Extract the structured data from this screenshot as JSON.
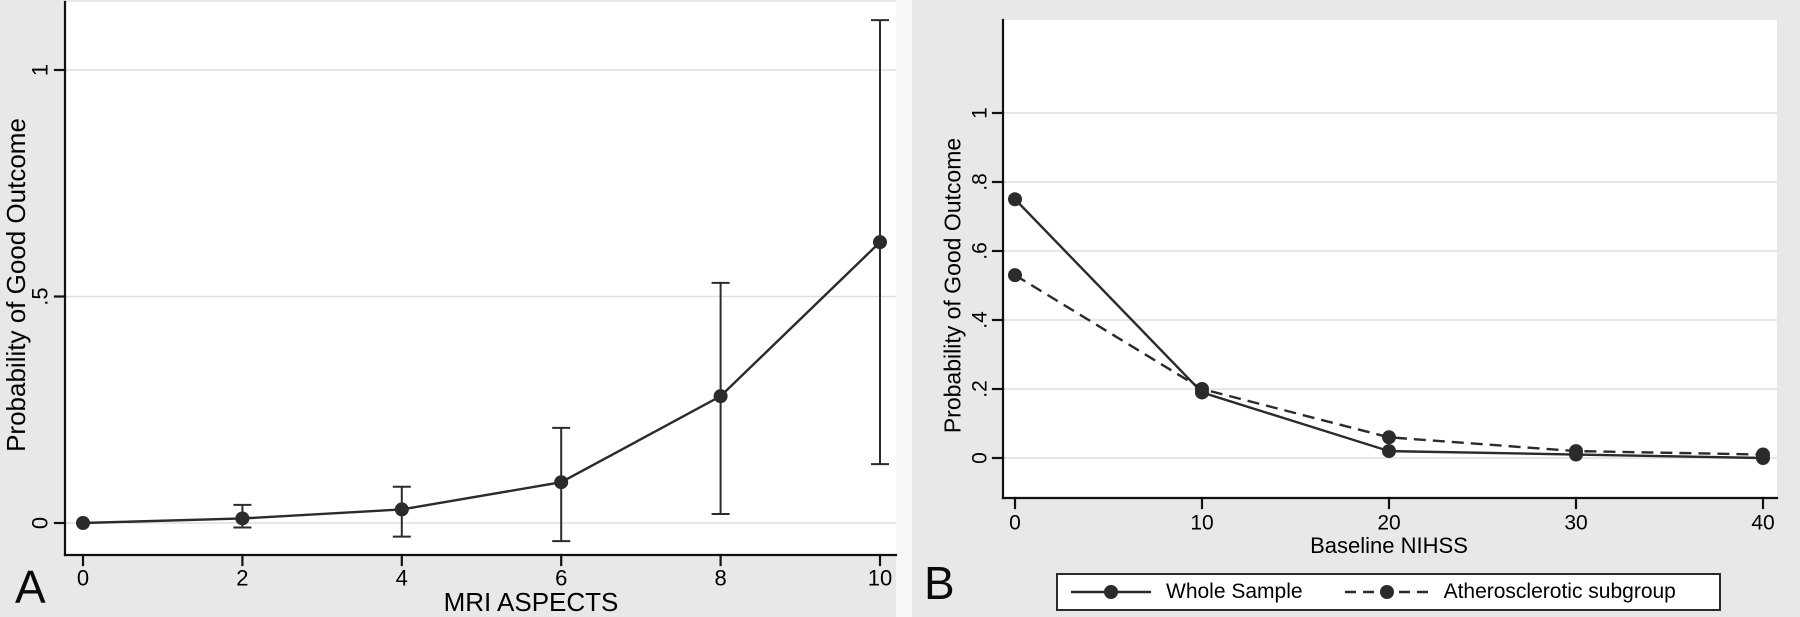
{
  "figure": {
    "background_color": "#e8e8e8",
    "plot_background_color": "#ffffff",
    "gridline_color": "#dfdfdf",
    "axis_color": "#111111",
    "line_color": "#2b2b2b",
    "text_color": "#000000",
    "panel_letters": [
      "A",
      "B"
    ]
  },
  "chart_data": [
    {
      "type": "line",
      "panel_letter": "A",
      "title": "",
      "xlabel": "MRI ASPECTS",
      "ylabel": "Probability of Good Outcome",
      "x": [
        0,
        2,
        4,
        6,
        8,
        10
      ],
      "xtick_labels": [
        "0",
        "2",
        "4",
        "6",
        "8",
        "10"
      ],
      "yticks": [
        0,
        0.5,
        1
      ],
      "ytick_labels": [
        "0",
        ".5",
        "1"
      ],
      "ylim": [
        -0.07,
        1.15
      ],
      "grid": "horizontal",
      "legend_shown": false,
      "series": [
        {
          "name": "Probability of Good Outcome",
          "line_style": "solid",
          "marker": "circle",
          "values": [
            0.0,
            0.01,
            0.03,
            0.09,
            0.28,
            0.62
          ],
          "ci_low": [
            null,
            -0.01,
            -0.03,
            -0.04,
            0.02,
            0.13
          ],
          "ci_high": [
            null,
            0.04,
            0.08,
            0.21,
            0.53,
            1.11
          ]
        }
      ]
    },
    {
      "type": "line",
      "panel_letter": "B",
      "title": "",
      "xlabel": "Baseline NIHSS",
      "ylabel": "Probability of Good Outcome",
      "x": [
        0,
        10,
        20,
        30,
        40
      ],
      "xtick_labels": [
        "0",
        "10",
        "20",
        "30",
        "40"
      ],
      "yticks": [
        0,
        0.2,
        0.4,
        0.6,
        0.8,
        1
      ],
      "ytick_labels": [
        "0",
        ".2",
        ".4",
        ".6",
        ".8",
        "1"
      ],
      "ylim": [
        -0.11,
        1.27
      ],
      "grid": "horizontal",
      "legend": {
        "position": "bottom",
        "entries": [
          "Whole Sample",
          "Atherosclerotic subgroup"
        ]
      },
      "series": [
        {
          "name": "Whole Sample",
          "line_style": "solid",
          "marker": "circle",
          "values": [
            0.75,
            0.19,
            0.02,
            0.01,
            0.0
          ]
        },
        {
          "name": "Atherosclerotic subgroup",
          "line_style": "dashed",
          "marker": "circle",
          "values": [
            0.53,
            0.2,
            0.06,
            0.02,
            0.01
          ]
        }
      ]
    }
  ]
}
